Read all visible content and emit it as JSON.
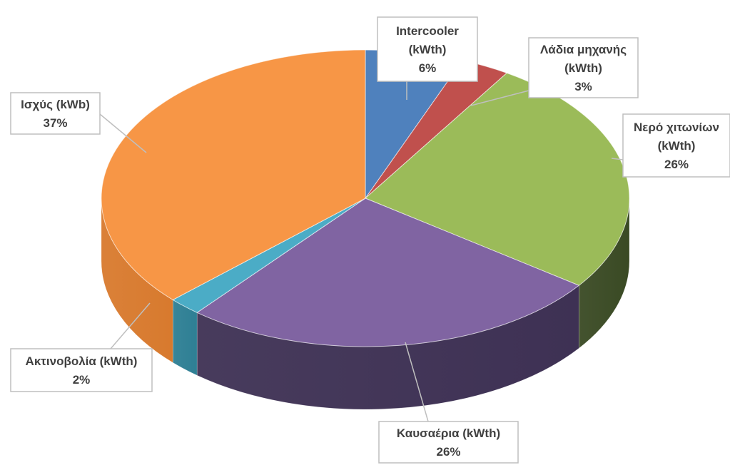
{
  "chart_data": {
    "type": "pie",
    "style": "3d-exploded-labels",
    "categories": [
      "Intercooler",
      "Λάδια μηχανής",
      "Νερό χιτωνίων",
      "Καυσαέρια",
      "Ακτινοβολία",
      "Ισχύς"
    ],
    "values": [
      6,
      3,
      26,
      26,
      2,
      37
    ],
    "units": "%",
    "slices": [
      {
        "label_lines": [
          "Intercooler",
          "(kWth)"
        ],
        "percent_text": "6%",
        "value": 6,
        "color": "#4F81BD",
        "side_color": "#3A6090"
      },
      {
        "label_lines": [
          "Λάδια μηχανής",
          "(kWth)"
        ],
        "percent_text": "3%",
        "value": 3,
        "color": "#C0504D",
        "side_color": "#8E3A38"
      },
      {
        "label_lines": [
          "Νερό χιτωνίων",
          "(kWth)"
        ],
        "percent_text": "26%",
        "value": 26,
        "color": "#9BBB59",
        "side_color": "#3A4A24"
      },
      {
        "label_lines": [
          "Καυσαέρια (kWth)"
        ],
        "percent_text": "26%",
        "value": 26,
        "color": "#8064A2",
        "side_color": "#3E3154"
      },
      {
        "label_lines": [
          "Ακτινοβολία (kWth)"
        ],
        "percent_text": "2%",
        "value": 2,
        "color": "#4BACC6",
        "side_color": "#2E7F94"
      },
      {
        "label_lines": [
          "Ισχύς (kWb)"
        ],
        "percent_text": "37%",
        "value": 37,
        "color": "#F79646",
        "side_color": "#D87A2E"
      }
    ]
  }
}
